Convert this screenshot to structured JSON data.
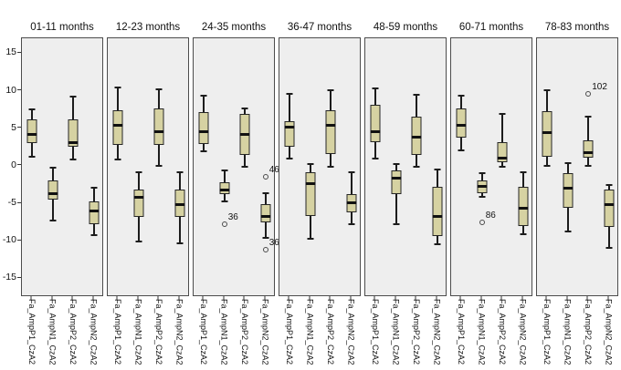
{
  "chart_data": {
    "type": "boxplot",
    "title": "",
    "ylabel": "",
    "xlabel": "",
    "ylim": [
      -17.5,
      17
    ],
    "yticks": [
      "15",
      "10",
      "5",
      "0",
      "-5",
      "-10",
      "-15"
    ],
    "ytick_values": [
      15,
      10,
      5,
      0,
      -5,
      -10,
      -15
    ],
    "grid": false,
    "legend": false,
    "series_labels": [
      "Fa_AmpP1_CzA2",
      "Fa_AmpN1_CzA2",
      "Fa_AmpP2_CzA2",
      "Fa_AmpN2_CzA2"
    ],
    "panels": [
      {
        "title": "01-11 months",
        "boxes": [
          {
            "lo": 1.2,
            "q1": 3.0,
            "med": 4.2,
            "q3": 6.2,
            "hi": 7.5,
            "outliers": []
          },
          {
            "lo": -7.3,
            "q1": -4.5,
            "med": -3.7,
            "q3": -2.0,
            "hi": -0.3,
            "outliers": []
          },
          {
            "lo": 0.8,
            "q1": 2.5,
            "med": 3.1,
            "q3": 6.2,
            "hi": 9.2,
            "outliers": []
          },
          {
            "lo": -9.3,
            "q1": -7.8,
            "med": -6.0,
            "q3": -4.8,
            "hi": -2.9,
            "outliers": []
          }
        ]
      },
      {
        "title": "12-23 months",
        "boxes": [
          {
            "lo": 0.9,
            "q1": 2.8,
            "med": 5.4,
            "q3": 7.4,
            "hi": 10.4,
            "outliers": []
          },
          {
            "lo": -10.1,
            "q1": -6.8,
            "med": -4.2,
            "q3": -3.2,
            "hi": -0.8,
            "outliers": []
          },
          {
            "lo": 0.0,
            "q1": 2.8,
            "med": 4.6,
            "q3": 7.6,
            "hi": 10.2,
            "outliers": []
          },
          {
            "lo": -10.3,
            "q1": -6.8,
            "med": -5.2,
            "q3": -3.2,
            "hi": -0.9,
            "outliers": []
          }
        ]
      },
      {
        "title": "24-35 months",
        "boxes": [
          {
            "lo": 1.9,
            "q1": 2.9,
            "med": 4.6,
            "q3": 7.1,
            "hi": 9.3,
            "outliers": []
          },
          {
            "lo": -4.7,
            "q1": -3.8,
            "med": -3.2,
            "q3": -2.2,
            "hi": -0.6,
            "outliers": [
              {
                "v": -7.8,
                "label": "36"
              }
            ]
          },
          {
            "lo": -0.1,
            "q1": 1.5,
            "med": 4.2,
            "q3": 6.9,
            "hi": 7.6,
            "outliers": []
          },
          {
            "lo": -9.6,
            "q1": -7.5,
            "med": -6.8,
            "q3": -5.1,
            "hi": -3.7,
            "outliers": [
              {
                "v": -1.5,
                "label": "46"
              },
              {
                "v": -11.2,
                "label": "36"
              }
            ]
          }
        ]
      },
      {
        "title": "36-47 months",
        "boxes": [
          {
            "lo": 1.0,
            "q1": 2.6,
            "med": 5.2,
            "q3": 6.0,
            "hi": 9.6,
            "outliers": []
          },
          {
            "lo": -9.7,
            "q1": -6.7,
            "med": -2.4,
            "q3": -0.9,
            "hi": 0.2,
            "outliers": []
          },
          {
            "lo": -0.1,
            "q1": 1.6,
            "med": 5.4,
            "q3": 7.4,
            "hi": 10.1,
            "outliers": []
          },
          {
            "lo": -7.8,
            "q1": -6.2,
            "med": -4.9,
            "q3": -3.8,
            "hi": -0.8,
            "outliers": []
          }
        ]
      },
      {
        "title": "48-59 months",
        "boxes": [
          {
            "lo": 1.0,
            "q1": 3.1,
            "med": 4.5,
            "q3": 8.1,
            "hi": 10.3,
            "outliers": []
          },
          {
            "lo": -7.8,
            "q1": -3.8,
            "med": -1.7,
            "q3": -0.6,
            "hi": 0.2,
            "outliers": []
          },
          {
            "lo": -0.1,
            "q1": 1.5,
            "med": 3.8,
            "q3": 6.5,
            "hi": 9.5,
            "outliers": []
          },
          {
            "lo": -10.5,
            "q1": -9.4,
            "med": -6.7,
            "q3": -2.8,
            "hi": -0.5,
            "outliers": []
          }
        ]
      },
      {
        "title": "60-71 months",
        "boxes": [
          {
            "lo": 2.1,
            "q1": 3.8,
            "med": 5.4,
            "q3": 7.6,
            "hi": 9.4,
            "outliers": []
          },
          {
            "lo": -4.1,
            "q1": -3.6,
            "med": -2.8,
            "q3": -2.0,
            "hi": -1.0,
            "outliers": [
              {
                "v": -7.5,
                "label": "86"
              }
            ]
          },
          {
            "lo": -0.1,
            "q1": 0.5,
            "med": 1.0,
            "q3": 3.2,
            "hi": 6.9,
            "outliers": []
          },
          {
            "lo": -9.1,
            "q1": -8.0,
            "med": -5.6,
            "q3": -2.8,
            "hi": -0.9,
            "outliers": []
          }
        ]
      },
      {
        "title": "78-83 months",
        "boxes": [
          {
            "lo": 0.0,
            "q1": 1.2,
            "med": 4.4,
            "q3": 7.3,
            "hi": 10.1,
            "outliers": []
          },
          {
            "lo": -8.8,
            "q1": -5.6,
            "med": -3.0,
            "q3": -1.0,
            "hi": 0.4,
            "outliers": []
          },
          {
            "lo": 0.0,
            "q1": 1.1,
            "med": 1.8,
            "q3": 3.4,
            "hi": 6.6,
            "outliers": [
              {
                "v": 9.6,
                "label": "102"
              }
            ]
          },
          {
            "lo": -11.0,
            "q1": -8.2,
            "med": -5.2,
            "q3": -3.2,
            "hi": -2.6,
            "outliers": []
          }
        ]
      }
    ]
  },
  "colors": {
    "box_fill": "#d6d2a2",
    "box_border": "#262626",
    "line": "#1c1c1c",
    "panel_bg": "#eeeeee",
    "panel_border": "#4c4c4c",
    "outlier_stroke": "#4a4a4a",
    "text": "#111111"
  }
}
